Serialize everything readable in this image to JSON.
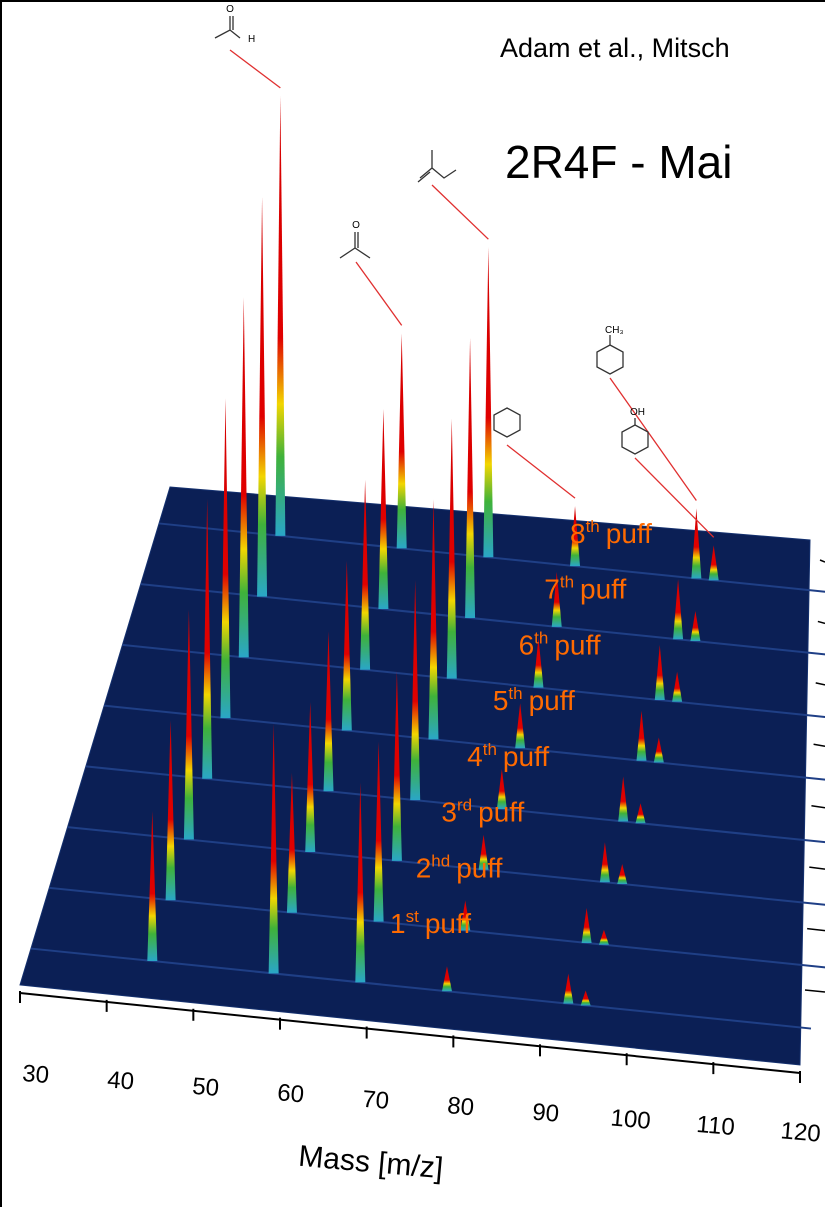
{
  "chart_data": {
    "type": "surface",
    "citation": "Adam et al., Mitsch",
    "title": "2R4F - Mai",
    "x_label": "Mass [m/z]",
    "xlim": [
      30,
      120
    ],
    "xticks": [
      30,
      40,
      50,
      60,
      70,
      80,
      90,
      100,
      110,
      120
    ],
    "x": [
      44,
      58,
      68,
      78,
      92,
      94
    ],
    "structure_labels": [
      "O",
      "H",
      "O",
      "CH₃",
      "OH"
    ],
    "rows": [
      {
        "label": {
          "n": "1",
          "sup": "st",
          "word": "puff"
        },
        "values": [
          150,
          250,
          200,
          25,
          30,
          15
        ]
      },
      {
        "label": {
          "n": "2",
          "sup": "hd",
          "word": "puff"
        },
        "values": [
          180,
          140,
          180,
          30,
          35,
          15
        ]
      },
      {
        "label": {
          "n": "3",
          "sup": "rd",
          "word": "puff"
        },
        "values": [
          230,
          150,
          190,
          35,
          40,
          20
        ]
      },
      {
        "label": {
          "n": "4",
          "sup": "th",
          "word": "puff"
        },
        "values": [
          280,
          160,
          220,
          40,
          45,
          20
        ]
      },
      {
        "label": {
          "n": "5",
          "sup": "th",
          "word": "puff"
        },
        "values": [
          320,
          170,
          240,
          45,
          50,
          25
        ]
      },
      {
        "label": {
          "n": "6",
          "sup": "th",
          "word": "puff"
        },
        "values": [
          360,
          190,
          260,
          50,
          55,
          30
        ]
      },
      {
        "label": {
          "n": "7",
          "sup": "th",
          "word": "puff"
        },
        "values": [
          400,
          200,
          280,
          55,
          60,
          30
        ]
      },
      {
        "label": {
          "n": "8",
          "sup": "th",
          "word": "puff"
        },
        "values": [
          440,
          215,
          310,
          60,
          70,
          35
        ]
      }
    ]
  }
}
